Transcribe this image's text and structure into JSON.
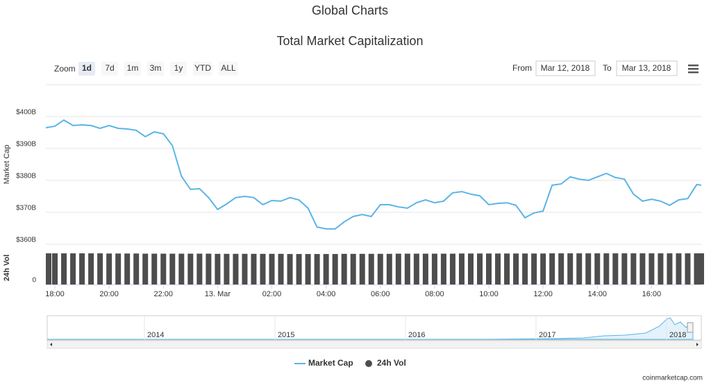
{
  "header": {
    "title": "Global Charts"
  },
  "range_selector": {
    "label": "Zoom",
    "buttons": [
      "1d",
      "7d",
      "1m",
      "3m",
      "1y",
      "YTD",
      "ALL"
    ],
    "selected": "1d"
  },
  "date_range": {
    "from_label": "From",
    "from": "Mar 12, 2018",
    "to_label": "To",
    "to": "Mar 13, 2018"
  },
  "chart_data": [
    {
      "type": "line",
      "title": "Total Market Capitalization",
      "y_label": "Market Cap",
      "x": [
        "2018-03-12T17:40",
        "2018-03-12T18:00",
        "2018-03-12T18:20",
        "2018-03-12T18:40",
        "2018-03-12T19:00",
        "2018-03-12T19:20",
        "2018-03-12T19:40",
        "2018-03-12T20:00",
        "2018-03-12T20:20",
        "2018-03-12T20:40",
        "2018-03-12T21:00",
        "2018-03-12T21:20",
        "2018-03-12T21:40",
        "2018-03-12T22:00",
        "2018-03-12T22:20",
        "2018-03-12T22:40",
        "2018-03-12T23:00",
        "2018-03-12T23:20",
        "2018-03-12T23:40",
        "2018-03-13T00:00",
        "2018-03-13T00:20",
        "2018-03-13T00:40",
        "2018-03-13T01:00",
        "2018-03-13T01:20",
        "2018-03-13T01:40",
        "2018-03-13T02:00",
        "2018-03-13T02:20",
        "2018-03-13T02:40",
        "2018-03-13T03:00",
        "2018-03-13T03:20",
        "2018-03-13T03:40",
        "2018-03-13T04:00",
        "2018-03-13T04:20",
        "2018-03-13T04:40",
        "2018-03-13T05:00",
        "2018-03-13T05:20",
        "2018-03-13T05:40",
        "2018-03-13T06:00",
        "2018-03-13T06:20",
        "2018-03-13T06:40",
        "2018-03-13T07:00",
        "2018-03-13T07:20",
        "2018-03-13T07:40",
        "2018-03-13T08:00",
        "2018-03-13T08:20",
        "2018-03-13T08:40",
        "2018-03-13T09:00",
        "2018-03-13T09:20",
        "2018-03-13T09:40",
        "2018-03-13T10:00",
        "2018-03-13T10:20",
        "2018-03-13T10:40",
        "2018-03-13T11:00",
        "2018-03-13T11:20",
        "2018-03-13T11:40",
        "2018-03-13T12:00",
        "2018-03-13T12:20",
        "2018-03-13T12:40",
        "2018-03-13T13:00",
        "2018-03-13T13:20",
        "2018-03-13T13:40",
        "2018-03-13T14:00",
        "2018-03-13T14:20",
        "2018-03-13T14:40",
        "2018-03-13T15:00",
        "2018-03-13T15:20",
        "2018-03-13T15:40",
        "2018-03-13T16:00",
        "2018-03-13T16:20",
        "2018-03-13T16:40",
        "2018-03-13T17:00",
        "2018-03-13T17:20",
        "2018-03-13T17:40",
        "2018-03-13T17:50"
      ],
      "series": [
        {
          "name": "Market Cap",
          "color": "#5ab4e6",
          "values": [
            396.5,
            397.0,
            398.9,
            397.2,
            397.4,
            397.2,
            396.3,
            397.2,
            396.3,
            396.1,
            395.7,
            393.7,
            395.2,
            394.6,
            390.9,
            381.3,
            377.2,
            377.4,
            374.6,
            370.9,
            372.6,
            374.6,
            375.0,
            374.6,
            372.4,
            373.7,
            373.5,
            374.6,
            373.9,
            371.3,
            365.4,
            364.8,
            364.8,
            367.0,
            368.7,
            369.3,
            368.7,
            372.4,
            372.4,
            371.7,
            371.3,
            373.0,
            373.9,
            373.0,
            373.5,
            376.1,
            376.5,
            375.7,
            375.2,
            372.4,
            372.8,
            373.0,
            372.2,
            368.3,
            369.8,
            370.4,
            378.5,
            378.9,
            381.1,
            380.4,
            380.0,
            381.1,
            382.2,
            380.9,
            380.4,
            375.7,
            373.5,
            374.1,
            373.5,
            372.2,
            373.9,
            374.3,
            378.7,
            378.5
          ]
        }
      ],
      "xlim": [
        "2018-03-12T17:40",
        "2018-03-13T17:50"
      ],
      "xticks": [
        {
          "value": "2018-03-12T18:00",
          "label": "18:00"
        },
        {
          "value": "2018-03-12T20:00",
          "label": "20:00"
        },
        {
          "value": "2018-03-12T22:00",
          "label": "22:00"
        },
        {
          "value": "2018-03-13T00:00",
          "label": "13. Mar"
        },
        {
          "value": "2018-03-13T02:00",
          "label": "02:00"
        },
        {
          "value": "2018-03-13T04:00",
          "label": "04:00"
        },
        {
          "value": "2018-03-13T06:00",
          "label": "06:00"
        },
        {
          "value": "2018-03-13T08:00",
          "label": "08:00"
        },
        {
          "value": "2018-03-13T10:00",
          "label": "10:00"
        },
        {
          "value": "2018-03-13T12:00",
          "label": "12:00"
        },
        {
          "value": "2018-03-13T14:00",
          "label": "14:00"
        },
        {
          "value": "2018-03-13T16:00",
          "label": "16:00"
        }
      ],
      "ylim": [
        360,
        410
      ],
      "yticks": [
        {
          "value": 360,
          "label": "$360B"
        },
        {
          "value": 370,
          "label": "$370B"
        },
        {
          "value": 380,
          "label": "$380B"
        },
        {
          "value": 390,
          "label": "$390B"
        },
        {
          "value": 400,
          "label": "$400B"
        }
      ],
      "grid": true
    },
    {
      "type": "bar",
      "y_label": "24h Vol",
      "x": [
        "2018-03-12T17:40",
        "2018-03-12T18:00",
        "2018-03-12T18:20",
        "2018-03-12T18:40",
        "2018-03-12T19:00",
        "2018-03-12T19:20",
        "2018-03-12T19:40",
        "2018-03-12T20:00",
        "2018-03-12T20:20",
        "2018-03-12T20:40",
        "2018-03-12T21:00",
        "2018-03-12T21:20",
        "2018-03-12T21:40",
        "2018-03-12T22:00",
        "2018-03-12T22:20",
        "2018-03-12T22:40",
        "2018-03-12T23:00",
        "2018-03-12T23:20",
        "2018-03-12T23:40",
        "2018-03-13T00:00",
        "2018-03-13T00:20",
        "2018-03-13T00:40",
        "2018-03-13T01:00",
        "2018-03-13T01:20",
        "2018-03-13T01:40",
        "2018-03-13T02:00",
        "2018-03-13T02:20",
        "2018-03-13T02:40",
        "2018-03-13T03:00",
        "2018-03-13T03:20",
        "2018-03-13T03:40",
        "2018-03-13T04:00",
        "2018-03-13T04:20",
        "2018-03-13T04:40",
        "2018-03-13T05:00",
        "2018-03-13T05:20",
        "2018-03-13T05:40",
        "2018-03-13T06:00",
        "2018-03-13T06:20",
        "2018-03-13T06:40",
        "2018-03-13T07:00",
        "2018-03-13T07:20",
        "2018-03-13T07:40",
        "2018-03-13T08:00",
        "2018-03-13T08:20",
        "2018-03-13T08:40",
        "2018-03-13T09:00",
        "2018-03-13T09:20",
        "2018-03-13T09:40",
        "2018-03-13T10:00",
        "2018-03-13T10:20",
        "2018-03-13T10:40",
        "2018-03-13T11:00",
        "2018-03-13T11:20",
        "2018-03-13T11:40",
        "2018-03-13T12:00",
        "2018-03-13T12:20",
        "2018-03-13T12:40",
        "2018-03-13T13:00",
        "2018-03-13T13:20",
        "2018-03-13T13:40",
        "2018-03-13T14:00",
        "2018-03-13T14:20",
        "2018-03-13T14:40",
        "2018-03-13T15:00",
        "2018-03-13T15:20",
        "2018-03-13T15:40",
        "2018-03-13T16:00",
        "2018-03-13T16:20",
        "2018-03-13T16:40",
        "2018-03-13T17:00",
        "2018-03-13T17:20",
        "2018-03-13T17:40",
        "2018-03-13T17:50"
      ],
      "series": [
        {
          "name": "24h Vol",
          "color": "#4d4d4d",
          "values": [
            18.7,
            18.7,
            18.7,
            18.7,
            18.7,
            18.7,
            18.7,
            18.6,
            18.6,
            18.6,
            18.6,
            18.5,
            18.5,
            18.5,
            18.5,
            18.5,
            18.5,
            18.5,
            18.5,
            18.4,
            18.4,
            18.4,
            18.4,
            18.4,
            18.4,
            18.4,
            18.4,
            18.3,
            18.3,
            18.3,
            18.3,
            18.3,
            18.3,
            18.4,
            18.4,
            18.4,
            18.4,
            18.4,
            18.4,
            18.5,
            18.5,
            18.5,
            18.5,
            18.5,
            18.5,
            18.5,
            18.6,
            18.6,
            18.6,
            18.6,
            18.6,
            18.6,
            18.6,
            18.6,
            18.6,
            18.6,
            18.7,
            18.7,
            18.7,
            18.7,
            18.7,
            18.7,
            18.7,
            18.7,
            18.7,
            18.7,
            18.7,
            18.7,
            18.7,
            18.7,
            18.7,
            18.7,
            18.7,
            18.7
          ]
        }
      ],
      "xlim": [
        "2018-03-12T17:40",
        "2018-03-13T17:50"
      ],
      "ylim": [
        0,
        20
      ],
      "yticks": [
        0
      ]
    }
  ],
  "navigator": {
    "labels": [
      "2014",
      "2015",
      "2016",
      "2017",
      "2018"
    ]
  },
  "credit": "coinmarketcap.com"
}
